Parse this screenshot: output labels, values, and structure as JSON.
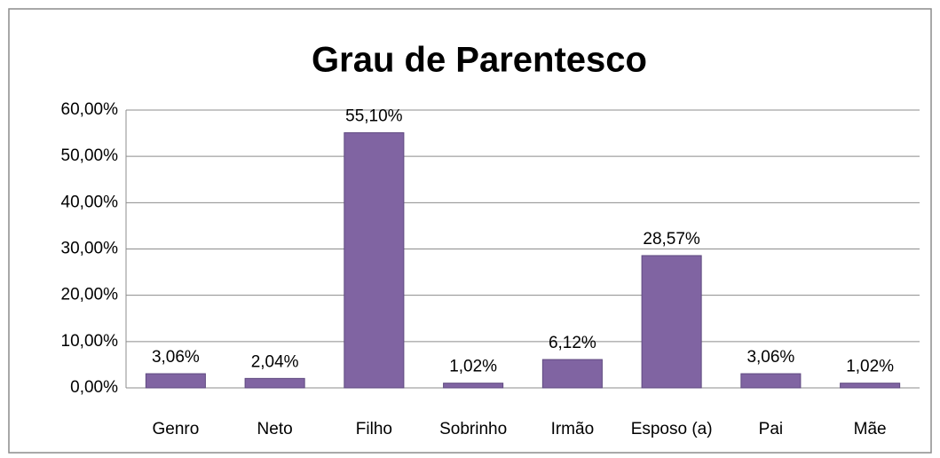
{
  "chart_data": {
    "type": "bar",
    "title": "Grau de Parentesco",
    "categories": [
      "Genro",
      "Neto",
      "Filho",
      "Sobrinho",
      "Irmão",
      "Esposo (a)",
      "Pai",
      "Mãe"
    ],
    "values": [
      3.06,
      2.04,
      55.1,
      1.02,
      6.12,
      28.57,
      3.06,
      1.02
    ],
    "value_labels": [
      "3,06%",
      "2,04%",
      "55,10%",
      "1,02%",
      "6,12%",
      "28,57%",
      "3,06%",
      "1,02%"
    ],
    "color": "#8064a2",
    "ylim": [
      0,
      60
    ],
    "yticks": [
      {
        "value": 0,
        "label": "0,00%"
      },
      {
        "value": 10,
        "label": "10,00%"
      },
      {
        "value": 20,
        "label": "20,00%"
      },
      {
        "value": 30,
        "label": "30,00%"
      },
      {
        "value": 40,
        "label": "40,00%"
      },
      {
        "value": 50,
        "label": "50,00%"
      },
      {
        "value": 60,
        "label": "60,00%"
      }
    ],
    "grid": true
  }
}
